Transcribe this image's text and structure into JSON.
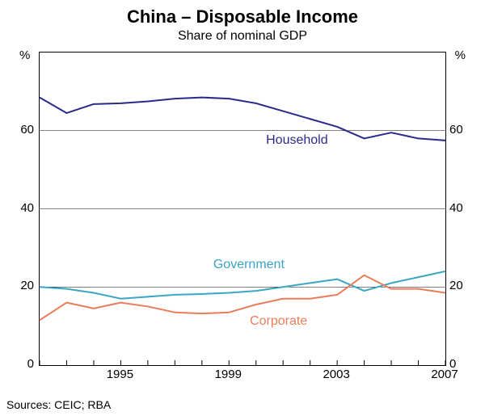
{
  "chart": {
    "type": "line",
    "title": "China – Disposable Income",
    "subtitle": "Share of nominal GDP",
    "title_fontsize": 22,
    "subtitle_fontsize": 16,
    "background_color": "#ffffff",
    "border_color": "#000000",
    "axes": {
      "y_unit": "%",
      "ylim": [
        0,
        80
      ],
      "yticks": [
        0,
        20,
        40,
        60
      ],
      "ylabel_fontsize": 15,
      "xlim": [
        1992,
        2007
      ],
      "xticks": [
        1995,
        1999,
        2003,
        2007
      ],
      "xlabel_fontsize": 15,
      "grid_color": "#000000",
      "grid_width": 0.5,
      "tick_color": "#000000"
    },
    "series": {
      "household": {
        "label": "Household",
        "color": "#2a2a8a",
        "line_width": 2,
        "data": [
          [
            1992,
            68.5
          ],
          [
            1993,
            64.5
          ],
          [
            1994,
            66.8
          ],
          [
            1995,
            67.0
          ],
          [
            1996,
            67.5
          ],
          [
            1997,
            68.2
          ],
          [
            1998,
            68.5
          ],
          [
            1999,
            68.2
          ],
          [
            2000,
            67.0
          ],
          [
            2001,
            65.0
          ],
          [
            2002,
            63.0
          ],
          [
            2003,
            61.0
          ],
          [
            2004,
            58.0
          ],
          [
            2005,
            59.5
          ],
          [
            2006,
            58.0
          ],
          [
            2007,
            57.5
          ]
        ],
        "label_pos": {
          "x_pct": 56,
          "y_pct": 26
        }
      },
      "government": {
        "label": "Government",
        "color": "#3aa5c4",
        "line_width": 2,
        "data": [
          [
            1992,
            20.0
          ],
          [
            1993,
            19.5
          ],
          [
            1994,
            18.5
          ],
          [
            1995,
            17.0
          ],
          [
            1996,
            17.5
          ],
          [
            1997,
            18.0
          ],
          [
            1998,
            18.2
          ],
          [
            1999,
            18.5
          ],
          [
            2000,
            19.0
          ],
          [
            2001,
            20.0
          ],
          [
            2002,
            21.0
          ],
          [
            2003,
            22.0
          ],
          [
            2004,
            19.0
          ],
          [
            2005,
            21.0
          ],
          [
            2006,
            22.5
          ],
          [
            2007,
            24.0
          ]
        ],
        "label_pos": {
          "x_pct": 43,
          "y_pct": 66
        }
      },
      "corporate": {
        "label": "Corporate",
        "color": "#e97d5a",
        "line_width": 2,
        "data": [
          [
            1992,
            11.5
          ],
          [
            1993,
            16.0
          ],
          [
            1994,
            14.5
          ],
          [
            1995,
            16.0
          ],
          [
            1996,
            15.0
          ],
          [
            1997,
            13.5
          ],
          [
            1998,
            13.2
          ],
          [
            1999,
            13.5
          ],
          [
            2000,
            15.5
          ],
          [
            2001,
            17.0
          ],
          [
            2002,
            17.0
          ],
          [
            2003,
            18.0
          ],
          [
            2004,
            23.0
          ],
          [
            2005,
            19.5
          ],
          [
            2006,
            19.5
          ],
          [
            2007,
            18.5
          ]
        ],
        "label_pos": {
          "x_pct": 52,
          "y_pct": 84
        }
      }
    },
    "sources": "Sources: CEIC; RBA",
    "sources_fontsize": 14
  }
}
